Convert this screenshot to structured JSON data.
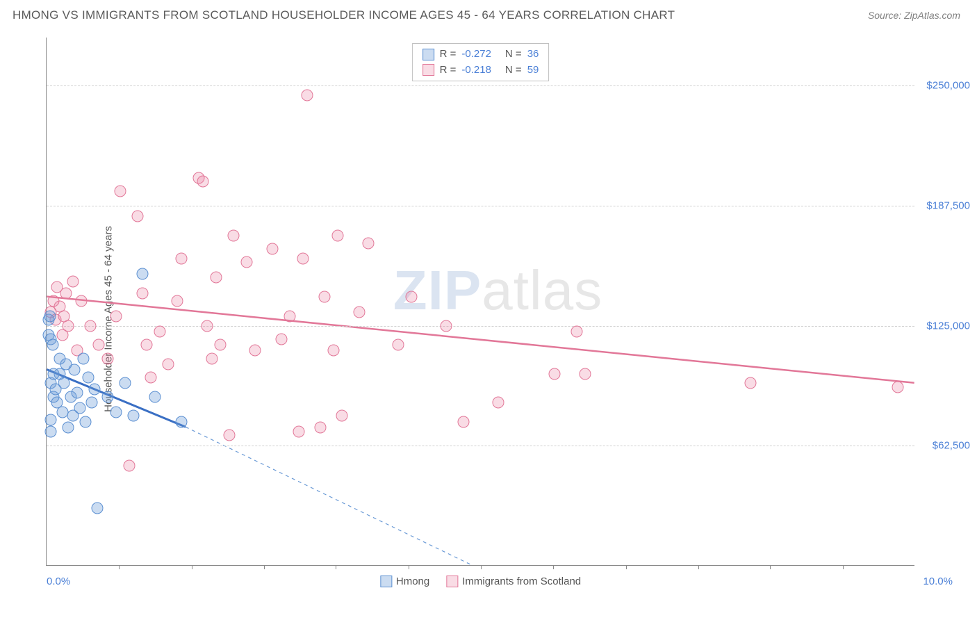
{
  "title": "HMONG VS IMMIGRANTS FROM SCOTLAND HOUSEHOLDER INCOME AGES 45 - 64 YEARS CORRELATION CHART",
  "source": "Source: ZipAtlas.com",
  "watermark_a": "ZIP",
  "watermark_b": "atlas",
  "chart": {
    "type": "scatter",
    "y_label": "Householder Income Ages 45 - 64 years",
    "x_min": 0.0,
    "x_max": 10.0,
    "y_min": 0,
    "y_max": 275000,
    "x_min_label": "0.0%",
    "x_max_label": "10.0%",
    "y_ticks": [
      62500,
      125000,
      187500,
      250000
    ],
    "y_tick_labels": [
      "$62,500",
      "$125,000",
      "$187,500",
      "$250,000"
    ],
    "x_tick_positions": [
      0.83,
      1.67,
      2.5,
      3.33,
      4.17,
      5.0,
      5.83,
      6.67,
      7.5,
      8.33,
      9.17
    ],
    "marker_size": 17,
    "series_a": {
      "name": "Hmong",
      "color_fill": "rgba(107,155,216,0.35)",
      "color_stroke": "#5b8fd1",
      "R": "-0.272",
      "N": "36",
      "trend": {
        "x1": 0.0,
        "y1": 102000,
        "x2": 1.6,
        "y2": 72000,
        "dash_x2": 4.9,
        "dash_y2": 0
      },
      "points": [
        [
          0.02,
          128000
        ],
        [
          0.02,
          120000
        ],
        [
          0.04,
          130000
        ],
        [
          0.05,
          118000
        ],
        [
          0.05,
          95000
        ],
        [
          0.05,
          76000
        ],
        [
          0.05,
          70000
        ],
        [
          0.07,
          115000
        ],
        [
          0.08,
          100000
        ],
        [
          0.08,
          88000
        ],
        [
          0.1,
          92000
        ],
        [
          0.12,
          85000
        ],
        [
          0.15,
          100000
        ],
        [
          0.15,
          108000
        ],
        [
          0.18,
          80000
        ],
        [
          0.2,
          95000
        ],
        [
          0.22,
          105000
        ],
        [
          0.25,
          72000
        ],
        [
          0.28,
          88000
        ],
        [
          0.3,
          78000
        ],
        [
          0.32,
          102000
        ],
        [
          0.35,
          90000
        ],
        [
          0.38,
          82000
        ],
        [
          0.42,
          108000
        ],
        [
          0.45,
          75000
        ],
        [
          0.48,
          98000
        ],
        [
          0.52,
          85000
        ],
        [
          0.55,
          92000
        ],
        [
          0.58,
          30000
        ],
        [
          0.7,
          88000
        ],
        [
          0.8,
          80000
        ],
        [
          0.9,
          95000
        ],
        [
          1.0,
          78000
        ],
        [
          1.1,
          152000
        ],
        [
          1.25,
          88000
        ],
        [
          1.55,
          75000
        ]
      ]
    },
    "series_b": {
      "name": "Immigrants from Scotland",
      "color_fill": "rgba(235,128,160,0.28)",
      "color_stroke": "#e27798",
      "R": "-0.218",
      "N": "59",
      "trend": {
        "x1": 0.0,
        "y1": 140000,
        "x2": 10.0,
        "y2": 95000
      },
      "points": [
        [
          0.05,
          132000
        ],
        [
          0.08,
          138000
        ],
        [
          0.1,
          128000
        ],
        [
          0.12,
          145000
        ],
        [
          0.15,
          135000
        ],
        [
          0.18,
          120000
        ],
        [
          0.2,
          130000
        ],
        [
          0.22,
          142000
        ],
        [
          0.25,
          125000
        ],
        [
          0.3,
          148000
        ],
        [
          0.35,
          112000
        ],
        [
          0.4,
          138000
        ],
        [
          0.5,
          125000
        ],
        [
          0.6,
          115000
        ],
        [
          0.7,
          108000
        ],
        [
          0.8,
          130000
        ],
        [
          0.85,
          195000
        ],
        [
          0.95,
          52000
        ],
        [
          1.05,
          182000
        ],
        [
          1.1,
          142000
        ],
        [
          1.15,
          115000
        ],
        [
          1.2,
          98000
        ],
        [
          1.3,
          122000
        ],
        [
          1.4,
          105000
        ],
        [
          1.5,
          138000
        ],
        [
          1.55,
          160000
        ],
        [
          1.75,
          202000
        ],
        [
          1.8,
          200000
        ],
        [
          1.85,
          125000
        ],
        [
          1.9,
          108000
        ],
        [
          1.95,
          150000
        ],
        [
          2.0,
          115000
        ],
        [
          2.1,
          68000
        ],
        [
          2.15,
          172000
        ],
        [
          2.3,
          158000
        ],
        [
          2.4,
          112000
        ],
        [
          2.6,
          165000
        ],
        [
          2.7,
          118000
        ],
        [
          2.8,
          130000
        ],
        [
          2.9,
          70000
        ],
        [
          2.95,
          160000
        ],
        [
          3.0,
          245000
        ],
        [
          3.15,
          72000
        ],
        [
          3.2,
          140000
        ],
        [
          3.3,
          112000
        ],
        [
          3.35,
          172000
        ],
        [
          3.4,
          78000
        ],
        [
          3.6,
          132000
        ],
        [
          3.7,
          168000
        ],
        [
          4.05,
          115000
        ],
        [
          4.2,
          140000
        ],
        [
          4.6,
          125000
        ],
        [
          4.8,
          75000
        ],
        [
          5.2,
          85000
        ],
        [
          5.85,
          100000
        ],
        [
          6.1,
          122000
        ],
        [
          6.2,
          100000
        ],
        [
          8.1,
          95000
        ],
        [
          9.8,
          93000
        ]
      ]
    },
    "bottom_legend": [
      {
        "sq": "a",
        "label": "Hmong"
      },
      {
        "sq": "b",
        "label": "Immigrants from Scotland"
      }
    ]
  }
}
